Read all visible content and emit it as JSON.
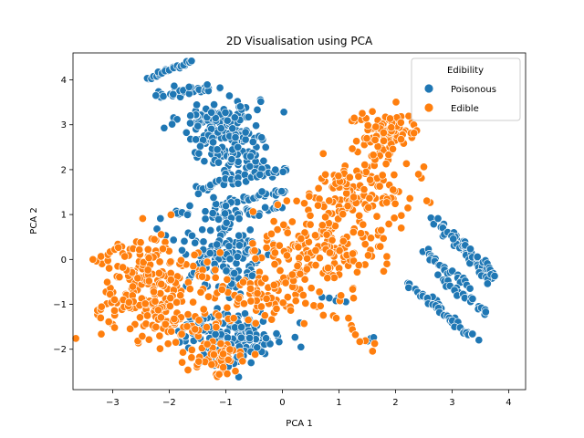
{
  "chart_data": {
    "type": "scatter",
    "title": "2D Visualisation using PCA",
    "xlabel": "PCA 1",
    "ylabel": "PCA 2",
    "xlim": [
      -3.7,
      4.3
    ],
    "ylim": [
      -2.9,
      4.6
    ],
    "xticks": [
      -3,
      -2,
      -1,
      0,
      1,
      2,
      3,
      4
    ],
    "yticks": [
      -2,
      -1,
      0,
      1,
      2,
      3,
      4
    ],
    "grid": false,
    "legend": {
      "title": "Edibility",
      "placement": "top-right"
    },
    "series": [
      {
        "name": "Poisonous",
        "color": "#1f77b4",
        "clusters": [
          {
            "kind": "segment",
            "from": [
              -2.4,
              4.05
            ],
            "to": [
              -1.6,
              4.4
            ],
            "n": 22,
            "spread": 0.03
          },
          {
            "kind": "segment",
            "from": [
              -2.2,
              3.65
            ],
            "to": [
              -1.3,
              3.85
            ],
            "n": 30,
            "spread": 0.06
          },
          {
            "kind": "blob",
            "center": [
              -1.1,
              3.05
            ],
            "sd": [
              0.35,
              0.3
            ],
            "n": 120
          },
          {
            "kind": "blob",
            "center": [
              -0.8,
              2.35
            ],
            "sd": [
              0.3,
              0.3
            ],
            "n": 90
          },
          {
            "kind": "segment",
            "from": [
              -1.5,
              1.6
            ],
            "to": [
              0.1,
              2.0
            ],
            "n": 35,
            "spread": 0.05
          },
          {
            "kind": "segment",
            "from": [
              -1.2,
              1.2
            ],
            "to": [
              0.1,
              1.55
            ],
            "n": 30,
            "spread": 0.06
          },
          {
            "kind": "segment",
            "from": [
              -1.3,
              0.95
            ],
            "to": [
              0.0,
              1.15
            ],
            "n": 25,
            "spread": 0.06
          },
          {
            "kind": "blob",
            "center": [
              -1.0,
              0.2
            ],
            "sd": [
              0.45,
              0.45
            ],
            "n": 140
          },
          {
            "kind": "blob",
            "center": [
              -0.7,
              -1.7
            ],
            "sd": [
              0.35,
              0.28
            ],
            "n": 110
          },
          {
            "kind": "blob",
            "center": [
              -1.5,
              -1.6
            ],
            "sd": [
              0.25,
              0.2
            ],
            "n": 40
          },
          {
            "kind": "blob",
            "center": [
              -1.1,
              -2.3
            ],
            "sd": [
              0.2,
              0.1
            ],
            "n": 20
          },
          {
            "kind": "segment",
            "from": [
              -1.9,
              1.1
            ],
            "to": [
              -1.7,
              1.0
            ],
            "n": 4,
            "spread": 0.03
          },
          {
            "kind": "segment",
            "from": [
              0.7,
              -0.8
            ],
            "to": [
              1.1,
              -0.9
            ],
            "n": 6,
            "spread": 0.05
          },
          {
            "kind": "segment",
            "from": [
              1.5,
              -1.8
            ],
            "to": [
              1.6,
              -1.75
            ],
            "n": 3,
            "spread": 0.02
          },
          {
            "kind": "segment",
            "from": [
              2.5,
              0.2
            ],
            "to": [
              3.3,
              -0.6
            ],
            "n": 24,
            "spread": 0.04
          },
          {
            "kind": "segment",
            "from": [
              2.7,
              0.9
            ],
            "to": [
              3.7,
              -0.5
            ],
            "n": 36,
            "spread": 0.04
          },
          {
            "kind": "segment",
            "from": [
              3.0,
              0.6
            ],
            "to": [
              3.8,
              -0.4
            ],
            "n": 24,
            "spread": 0.04
          },
          {
            "kind": "segment",
            "from": [
              2.2,
              -0.5
            ],
            "to": [
              3.0,
              -1.3
            ],
            "n": 22,
            "spread": 0.04
          },
          {
            "kind": "segment",
            "from": [
              2.5,
              -0.8
            ],
            "to": [
              3.4,
              -1.8
            ],
            "n": 28,
            "spread": 0.04
          },
          {
            "kind": "segment",
            "from": [
              2.8,
              -0.4
            ],
            "to": [
              3.6,
              -1.2
            ],
            "n": 22,
            "spread": 0.04
          }
        ]
      },
      {
        "name": "Edible",
        "color": "#ff7f0e",
        "clusters": [
          {
            "kind": "blob",
            "center": [
              1.9,
              2.8
            ],
            "sd": [
              0.3,
              0.25
            ],
            "n": 90
          },
          {
            "kind": "segment",
            "from": [
              1.2,
              3.1
            ],
            "to": [
              1.5,
              3.2
            ],
            "n": 5,
            "spread": 0.05
          },
          {
            "kind": "blob",
            "center": [
              1.3,
              1.5
            ],
            "sd": [
              0.45,
              0.35
            ],
            "n": 120
          },
          {
            "kind": "blob",
            "center": [
              0.7,
              0.3
            ],
            "sd": [
              0.55,
              0.45
            ],
            "n": 170
          },
          {
            "kind": "segment",
            "from": [
              0.3,
              -0.6
            ],
            "to": [
              1.6,
              -2.0
            ],
            "n": 18,
            "spread": 0.08
          },
          {
            "kind": "blob",
            "center": [
              -0.4,
              -0.8
            ],
            "sd": [
              0.55,
              0.35
            ],
            "n": 80
          },
          {
            "kind": "blob",
            "center": [
              -2.3,
              -0.5
            ],
            "sd": [
              0.5,
              0.45
            ],
            "n": 160
          },
          {
            "kind": "segment",
            "from": [
              -3.4,
              0.0
            ],
            "to": [
              -2.1,
              0.5
            ],
            "n": 14,
            "spread": 0.08
          },
          {
            "kind": "segment",
            "from": [
              -3.2,
              -1.1
            ],
            "to": [
              -2.0,
              -0.9
            ],
            "n": 14,
            "spread": 0.08
          },
          {
            "kind": "blob",
            "center": [
              -2.0,
              -1.5
            ],
            "sd": [
              0.5,
              0.2
            ],
            "n": 60
          },
          {
            "kind": "blob",
            "center": [
              -1.1,
              -2.2
            ],
            "sd": [
              0.25,
              0.2
            ],
            "n": 50
          },
          {
            "kind": "segment",
            "from": [
              2.4,
              1.9
            ],
            "to": [
              2.5,
              2.1
            ],
            "n": 2,
            "spread": 0.02
          },
          {
            "kind": "segment",
            "from": [
              1.9,
              0.8
            ],
            "to": [
              2.0,
              0.9
            ],
            "n": 2,
            "spread": 0.02
          }
        ]
      }
    ]
  }
}
